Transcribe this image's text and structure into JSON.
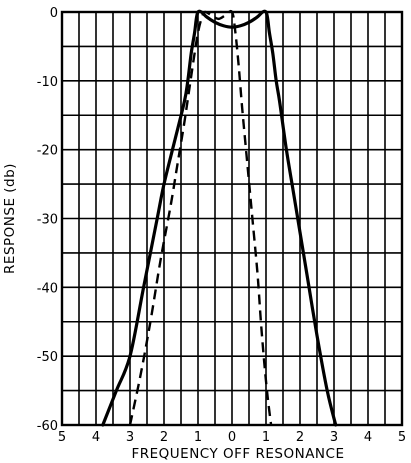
{
  "chart_data": {
    "type": "line",
    "xlabel": "FREQUENCY OFF RESONANCE",
    "ylabel": "RESPONSE (db)",
    "x_tick_labels": [
      "5",
      "4",
      "3",
      "2",
      "1",
      "0",
      "1",
      "2",
      "3",
      "4",
      "5"
    ],
    "x_ticks": [
      -5,
      -4,
      -3,
      -2,
      -1,
      0,
      1,
      2,
      3,
      4,
      5
    ],
    "xlim": [
      -5,
      5
    ],
    "y_ticks": [
      0,
      -10,
      -20,
      -30,
      -40,
      -50,
      -60
    ],
    "ylim": [
      -60,
      0
    ],
    "grid": true,
    "series": [
      {
        "style": "solid",
        "x": [
          -3.8,
          -3.4,
          -3.0,
          -2.6,
          -2.2,
          -2.0,
          -1.7,
          -1.4,
          -1.3,
          -1.2,
          -1.1,
          -1.05,
          -1.0,
          -0.9,
          -0.75,
          -0.5,
          -0.25,
          0,
          0.25,
          0.5,
          0.75,
          0.9,
          1.0,
          1.05,
          1.1,
          1.2,
          1.3,
          1.4,
          1.6,
          1.8,
          2.0,
          2.2,
          2.5,
          2.8,
          3.05
        ],
        "y": [
          -60,
          -55,
          -50,
          -40,
          -30,
          -25,
          -19,
          -13,
          -10,
          -6,
          -3,
          -1,
          0,
          0,
          -0.7,
          -1.5,
          -2.0,
          -2.2,
          -2.0,
          -1.5,
          -0.7,
          0,
          0,
          -1,
          -3,
          -6,
          -10,
          -13,
          -20,
          -26,
          -32,
          -38,
          -47,
          -55,
          -60
        ]
      },
      {
        "style": "dashed",
        "x": [
          -3.0,
          -2.7,
          -2.4,
          -2.1,
          -1.8,
          -1.6,
          -1.4,
          -1.25,
          -1.1,
          -1.0,
          -0.9,
          -0.8,
          -0.6,
          -0.4,
          -0.2,
          0,
          0.1,
          0.2,
          0.3,
          0.45,
          0.6,
          0.75,
          0.85,
          0.95,
          1.05,
          1.15
        ],
        "y": [
          -60,
          -53,
          -45,
          -36,
          -28,
          -22,
          -16,
          -11,
          -6,
          -3,
          -1,
          0,
          -0.5,
          -1.0,
          -0.5,
          0,
          -3,
          -8,
          -14,
          -22,
          -30,
          -38,
          -45,
          -51,
          -56,
          -60
        ]
      }
    ]
  }
}
